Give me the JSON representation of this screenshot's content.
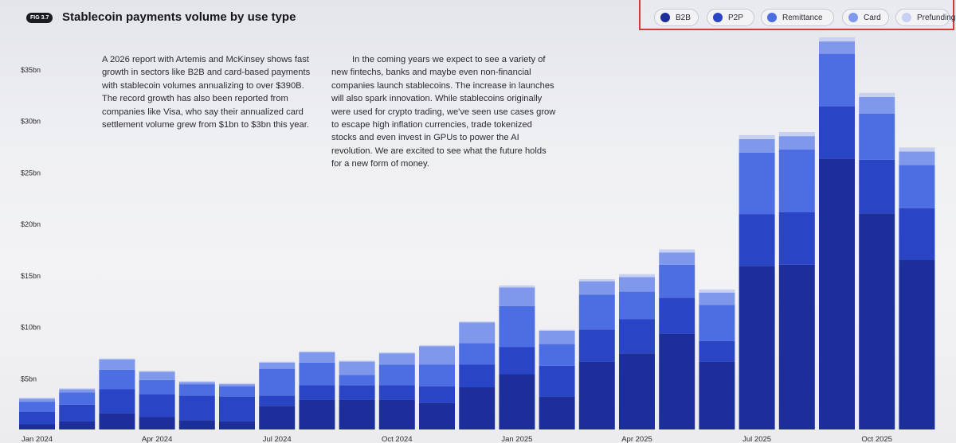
{
  "header": {
    "badge": "FIG 3.7",
    "title": "Stablecoin payments volume by use type"
  },
  "text": {
    "left": "A 2026 report with Artemis and McKinsey shows fast growth in sectors like B2B and card-based payments with stablecoin volumes annualizing to over $390B. The record growth has also been reported from companies like Visa, who say their annualized card settlement volume grew from $1bn to $3bn this year.",
    "right": "In the coming years we expect to see a variety of new fintechs, banks and maybe even non-financial companies launch stablecoins. The increase in launches will also spark innovation. While stablecoins originally were used for crypto trading, we've seen use cases grow to escape high inflation currencies, trade tokenized stocks and even invest in GPUs to power the AI revolution. We are excited to see what the future holds for a new form of money."
  },
  "colors": {
    "B2B": "#1c2e9a",
    "P2P": "#2a44c6",
    "Remittance": "#4d6de2",
    "Card": "#7f98ec",
    "Prefunding": "#c9d1f2"
  },
  "chart_data": {
    "type": "bar",
    "stacked": true,
    "ylim": [
      0,
      37
    ],
    "y_ticks": [
      5,
      10,
      15,
      20,
      25,
      30,
      35
    ],
    "y_tick_labels": [
      "$5bn",
      "$10bn",
      "$15bn",
      "$20bn",
      "$25bn",
      "$30bn",
      "$35bn"
    ],
    "x_ticks": [
      {
        "index": 0,
        "label": "Jan 2024"
      },
      {
        "index": 3,
        "label": "Apr 2024"
      },
      {
        "index": 6,
        "label": "Jul 2024"
      },
      {
        "index": 9,
        "label": "Oct 2024"
      },
      {
        "index": 12,
        "label": "Jan 2025"
      },
      {
        "index": 15,
        "label": "Apr 2025"
      },
      {
        "index": 18,
        "label": "Jul 2025"
      },
      {
        "index": 21,
        "label": "Oct 2025"
      }
    ],
    "categories": [
      "Jan 2024",
      "Feb 2024",
      "Mar 2024",
      "Apr 2024",
      "May 2024",
      "Jun 2024",
      "Jul 2024",
      "Aug 2024",
      "Sep 2024",
      "Oct 2024",
      "Nov 2024",
      "Dec 2024",
      "Jan 2025",
      "Feb 2025",
      "Mar 2025",
      "Apr 2025",
      "May 2025",
      "Jun 2025",
      "Jul 2025",
      "Aug 2025",
      "Sep 2025",
      "Oct 2025",
      "Nov 2025"
    ],
    "legend": [
      "B2B",
      "P2P",
      "Remittance",
      "Card",
      "Prefunding"
    ],
    "series": [
      {
        "name": "B2B",
        "values": [
          0.5,
          0.8,
          1.6,
          1.2,
          0.9,
          0.8,
          2.3,
          2.9,
          2.9,
          2.9,
          2.6,
          4.1,
          5.4,
          3.2,
          6.6,
          7.4,
          9.3,
          6.6,
          15.9,
          16.0,
          26.3,
          21.0,
          16.5
        ]
      },
      {
        "name": "P2P",
        "values": [
          1.2,
          1.6,
          2.3,
          2.2,
          2.4,
          2.4,
          1.0,
          1.4,
          1.4,
          1.4,
          1.6,
          2.2,
          2.6,
          3.0,
          3.1,
          3.3,
          3.5,
          2.0,
          5.0,
          5.1,
          5.1,
          5.2,
          5.0
        ]
      },
      {
        "name": "Remittance",
        "values": [
          1.0,
          1.2,
          1.9,
          1.4,
          1.1,
          1.0,
          2.6,
          2.2,
          1.0,
          2.0,
          2.1,
          2.1,
          4.0,
          2.1,
          3.4,
          2.7,
          3.2,
          3.5,
          6.0,
          6.1,
          5.1,
          4.5,
          4.2
        ]
      },
      {
        "name": "Card",
        "values": [
          0.3,
          0.3,
          1.0,
          0.8,
          0.2,
          0.2,
          0.6,
          1.0,
          1.3,
          1.1,
          1.8,
          2.0,
          1.8,
          1.3,
          1.3,
          1.4,
          1.2,
          1.2,
          1.3,
          1.3,
          1.2,
          1.6,
          1.3
        ]
      },
      {
        "name": "Prefunding",
        "values": [
          0.1,
          0.1,
          0.1,
          0.1,
          0.1,
          0.1,
          0.1,
          0.1,
          0.1,
          0.1,
          0.1,
          0.1,
          0.2,
          0.1,
          0.2,
          0.3,
          0.3,
          0.3,
          0.4,
          0.4,
          0.4,
          0.4,
          0.4
        ]
      }
    ]
  }
}
